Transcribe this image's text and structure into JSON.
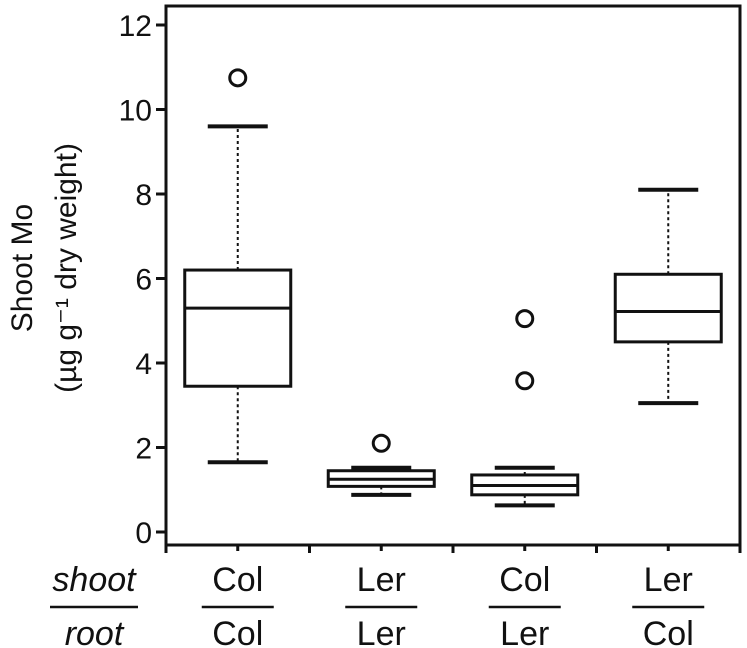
{
  "chart_data": {
    "type": "box",
    "ylabel_line1": "Shoot Mo",
    "ylabel_line2": "(µg g⁻¹ dry weight)",
    "ylim": [
      0,
      12
    ],
    "yticks": [
      0,
      2,
      4,
      6,
      8,
      10,
      12
    ],
    "grid": false,
    "row_labels": {
      "top": "shoot",
      "bottom": "root"
    },
    "boxes": [
      {
        "shoot": "Col",
        "root": "Col",
        "whisker_low": 1.65,
        "q1": 3.45,
        "median": 5.3,
        "q3": 6.2,
        "whisker_high": 9.6,
        "outliers": [
          10.75
        ]
      },
      {
        "shoot": "Ler",
        "root": "Ler",
        "whisker_low": 0.88,
        "q1": 1.08,
        "median": 1.25,
        "q3": 1.45,
        "whisker_high": 1.52,
        "outliers": [
          2.1
        ]
      },
      {
        "shoot": "Col",
        "root": "Ler",
        "whisker_low": 0.63,
        "q1": 0.88,
        "median": 1.1,
        "q3": 1.35,
        "whisker_high": 1.52,
        "outliers": [
          3.58,
          5.05
        ]
      },
      {
        "shoot": "Ler",
        "root": "Col",
        "whisker_low": 3.05,
        "q1": 4.5,
        "median": 5.22,
        "q3": 6.1,
        "whisker_high": 8.1,
        "outliers": []
      }
    ]
  }
}
